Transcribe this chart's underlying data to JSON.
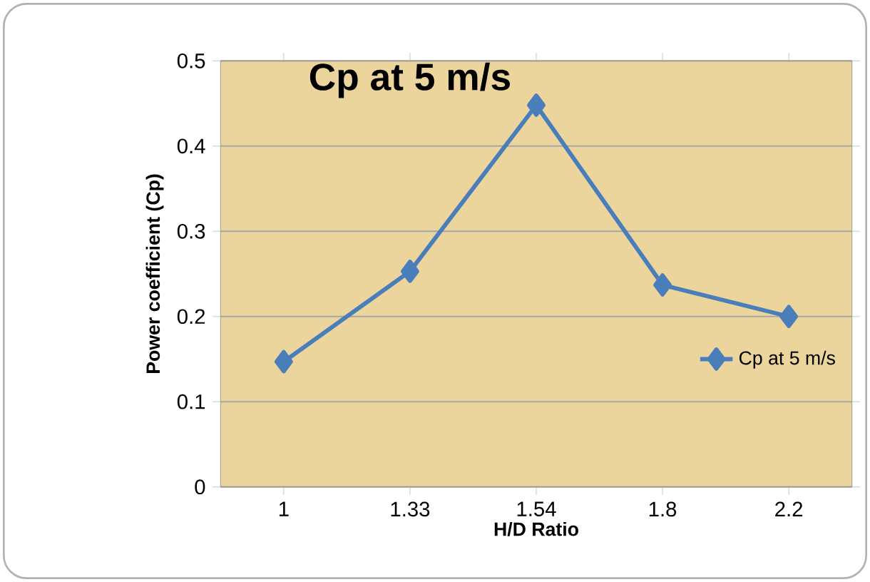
{
  "chart_data": {
    "type": "line",
    "title": "Cp at 5 m/s",
    "xlabel": "H/D Ratio",
    "ylabel": "Power coefficient (Cp)",
    "categories": [
      "1",
      "1.33",
      "1.54",
      "1.8",
      "2.2"
    ],
    "series": [
      {
        "name": "Cp at 5 m/s",
        "color": "#4a7ebb",
        "values": [
          0.147,
          0.253,
          0.448,
          0.237,
          0.2
        ]
      }
    ],
    "ylim": [
      0,
      0.5
    ],
    "yticks": [
      0,
      0.1,
      0.2,
      0.3,
      0.4,
      0.5
    ],
    "grid": "y",
    "legend": "right",
    "marker": "diamond",
    "line_style": "solid"
  }
}
